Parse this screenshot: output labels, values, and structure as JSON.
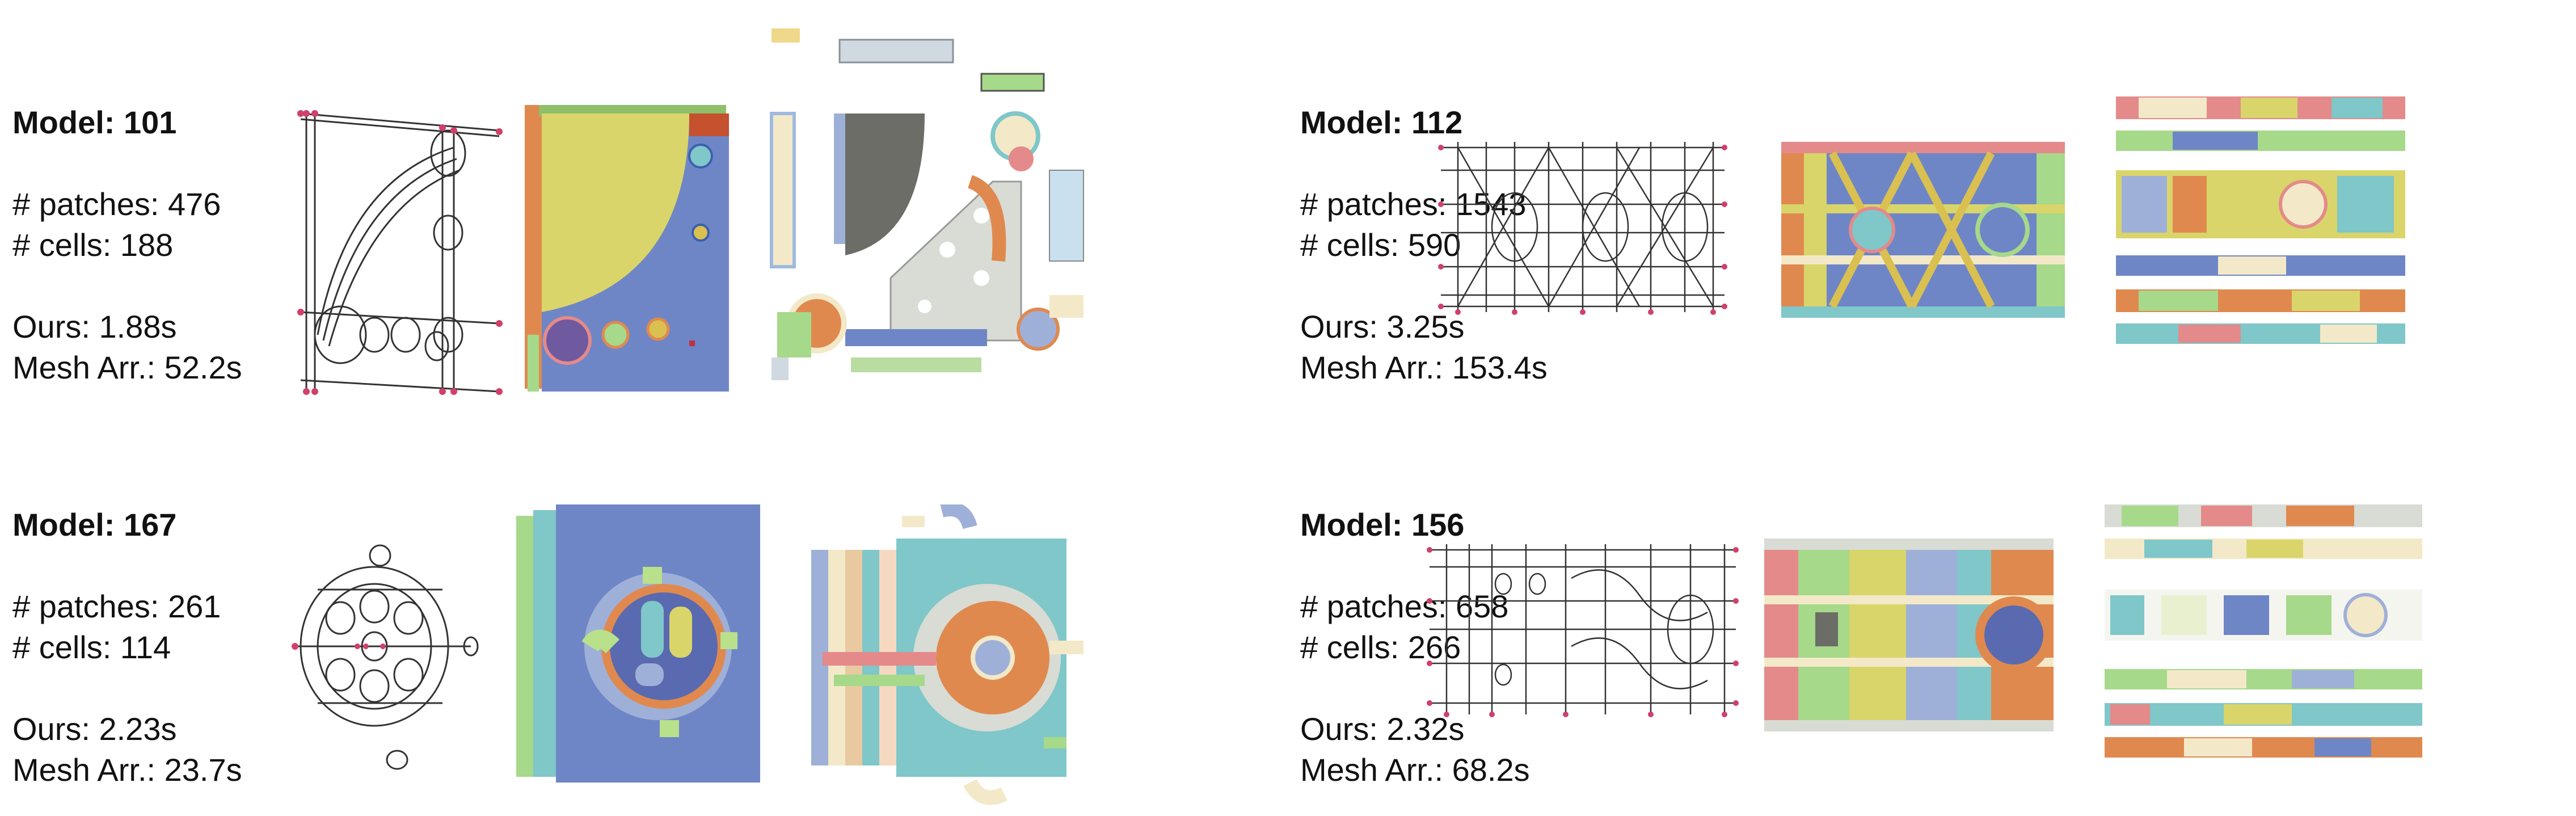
{
  "panels": [
    {
      "model": "Model: 101",
      "patches": "# patches: 476",
      "cells": "# cells: 188",
      "ours": "Ours: 1.88s",
      "mesh": "Mesh Arr.: 52.2s"
    },
    {
      "model": "Model: 112",
      "patches": "# patches: 1543",
      "cells": "# cells: 590",
      "ours": "Ours: 3.25s",
      "mesh": "Mesh Arr.: 153.4s"
    },
    {
      "model": "Model: 167",
      "patches": "# patches: 261",
      "cells": "# cells: 114",
      "ours": "Ours: 2.23s",
      "mesh": "Mesh Arr.: 23.7s"
    },
    {
      "model": "Model: 156",
      "patches": "# patches: 658",
      "cells": "# cells: 266",
      "ours": "Ours: 2.32s",
      "mesh": "Mesh Arr.: 68.2s"
    }
  ],
  "colors": {
    "wire": "#333333",
    "vertex": "#d0406a",
    "blue": "#6f86c6",
    "yellow": "#d9d56a",
    "green": "#a6d98a",
    "orange": "#e0894f",
    "cream": "#f3e9c8",
    "teal": "#7fc7c9",
    "pink": "#e48a8a",
    "grey": "#6b6d66"
  }
}
